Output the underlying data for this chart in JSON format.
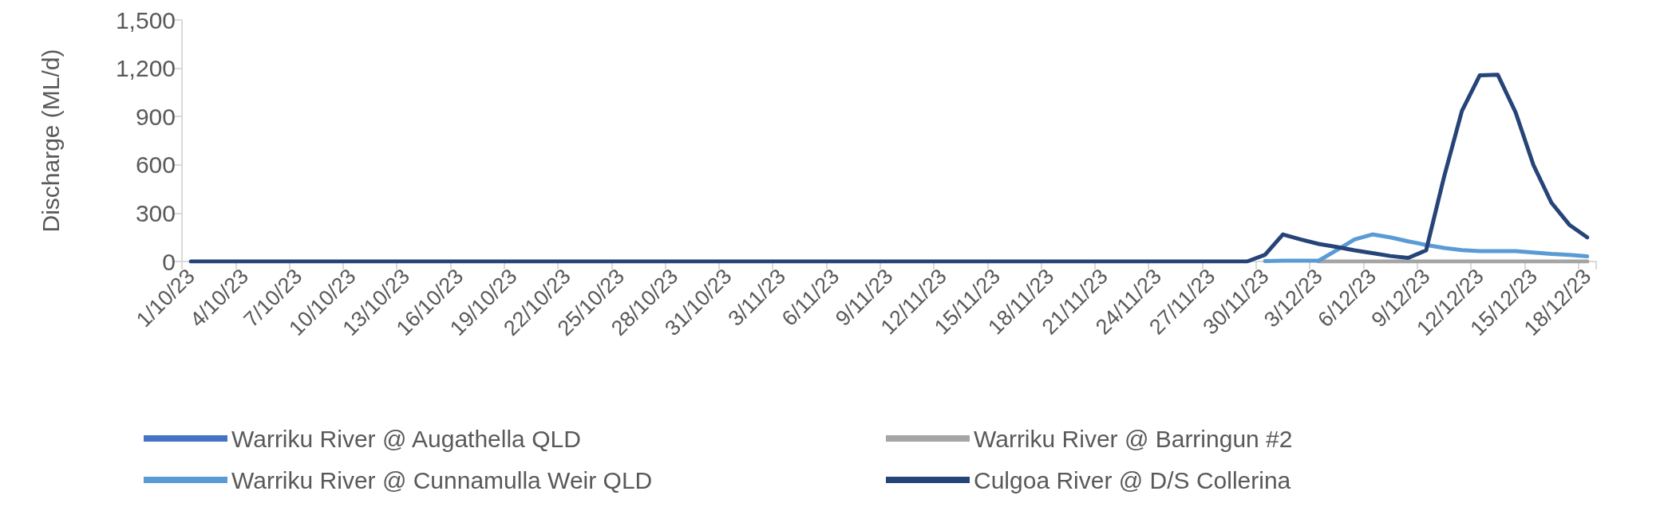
{
  "chart_data": {
    "type": "line",
    "ylabel": "Discharge (ML/d)",
    "categories": [
      "1/10/23",
      null,
      null,
      "4/10/23",
      null,
      null,
      "7/10/23",
      null,
      null,
      "10/10/23",
      null,
      null,
      "13/10/23",
      null,
      null,
      "16/10/23",
      null,
      null,
      "19/10/23",
      null,
      null,
      "22/10/23",
      null,
      null,
      "25/10/23",
      null,
      null,
      "28/10/23",
      null,
      null,
      "31/10/23",
      null,
      null,
      "3/11/23",
      null,
      null,
      "6/11/23",
      null,
      null,
      "9/11/23",
      null,
      null,
      "12/11/23",
      null,
      null,
      "15/11/23",
      null,
      null,
      "18/11/23",
      null,
      null,
      "21/11/23",
      null,
      null,
      "24/11/23",
      null,
      null,
      "27/11/23",
      null,
      null,
      "30/11/23",
      null,
      null,
      "3/12/23",
      null,
      null,
      "6/12/23",
      null,
      null,
      "9/12/23",
      null,
      null,
      "12/12/23",
      null,
      null,
      "15/12/23",
      null,
      null,
      "18/12/23"
    ],
    "series": [
      {
        "name": "Warriku River @ Augathella QLD",
        "color": "#4472c4",
        "values": [
          null,
          null,
          null,
          null,
          null,
          null,
          null,
          null,
          null,
          null,
          null,
          null,
          null,
          null,
          null,
          null,
          null,
          null,
          null,
          null,
          null,
          null,
          null,
          null,
          null,
          null,
          null,
          null,
          null,
          null,
          null,
          null,
          null,
          null,
          null,
          null,
          null,
          null,
          null,
          null,
          null,
          null,
          null,
          null,
          null,
          null,
          null,
          null,
          null,
          null,
          null,
          null,
          null,
          null,
          null,
          null,
          null,
          null,
          null,
          null,
          null,
          null,
          null,
          null,
          null,
          null,
          null,
          null,
          null,
          null,
          null,
          null,
          null,
          null,
          null,
          null,
          null,
          null,
          null
        ]
      },
      {
        "name": "Warriku River @ Barringun #2",
        "color": "#a5a5a5",
        "values": [
          null,
          null,
          null,
          null,
          null,
          null,
          null,
          null,
          null,
          null,
          null,
          null,
          null,
          null,
          null,
          null,
          null,
          null,
          null,
          null,
          null,
          null,
          null,
          null,
          null,
          null,
          null,
          null,
          null,
          null,
          null,
          null,
          null,
          null,
          null,
          null,
          null,
          null,
          null,
          null,
          null,
          null,
          null,
          null,
          null,
          null,
          null,
          null,
          null,
          null,
          null,
          null,
          null,
          null,
          null,
          null,
          null,
          null,
          null,
          null,
          null,
          null,
          null,
          0,
          0,
          0,
          0,
          0,
          0,
          0,
          0,
          0,
          0,
          0,
          0,
          0,
          0,
          0,
          0
        ]
      },
      {
        "name": "Warriku River @ Cunnamulla Weir QLD",
        "color": "#5b9bd5",
        "values": [
          null,
          null,
          null,
          null,
          null,
          null,
          null,
          null,
          null,
          null,
          null,
          null,
          null,
          null,
          null,
          null,
          null,
          null,
          null,
          null,
          null,
          null,
          null,
          null,
          null,
          null,
          null,
          null,
          null,
          null,
          null,
          null,
          null,
          null,
          null,
          null,
          null,
          null,
          null,
          null,
          null,
          null,
          null,
          null,
          null,
          null,
          null,
          null,
          null,
          null,
          null,
          null,
          null,
          null,
          null,
          null,
          null,
          null,
          null,
          null,
          3,
          5,
          5,
          5,
          70,
          137,
          168,
          150,
          125,
          103,
          84,
          71,
          64,
          64,
          64,
          56,
          47,
          41,
          32
        ]
      },
      {
        "name": "Culgoa River @ D/S Collerina",
        "color": "#264478",
        "values": [
          0,
          0,
          0,
          0,
          0,
          0,
          0,
          0,
          0,
          0,
          0,
          0,
          0,
          0,
          0,
          0,
          0,
          0,
          0,
          0,
          0,
          0,
          0,
          0,
          0,
          0,
          0,
          0,
          0,
          0,
          0,
          0,
          0,
          0,
          0,
          0,
          0,
          0,
          0,
          0,
          0,
          0,
          0,
          0,
          0,
          0,
          0,
          0,
          0,
          0,
          0,
          0,
          0,
          0,
          0,
          0,
          0,
          0,
          0,
          0,
          41,
          168,
          137,
          109,
          90,
          69,
          52,
          34,
          22,
          69,
          524,
          935,
          1156,
          1160,
          926,
          598,
          365,
          228,
          150
        ]
      }
    ],
    "ylim": [
      0,
      1500
    ],
    "yticks": [
      0,
      300,
      600,
      900,
      {
        "value": 1200,
        "label": "1,200"
      },
      {
        "value": 1500,
        "label": "1,500"
      }
    ],
    "grid": false,
    "legend": "bottom",
    "marker": "none",
    "line_style": "solid"
  }
}
